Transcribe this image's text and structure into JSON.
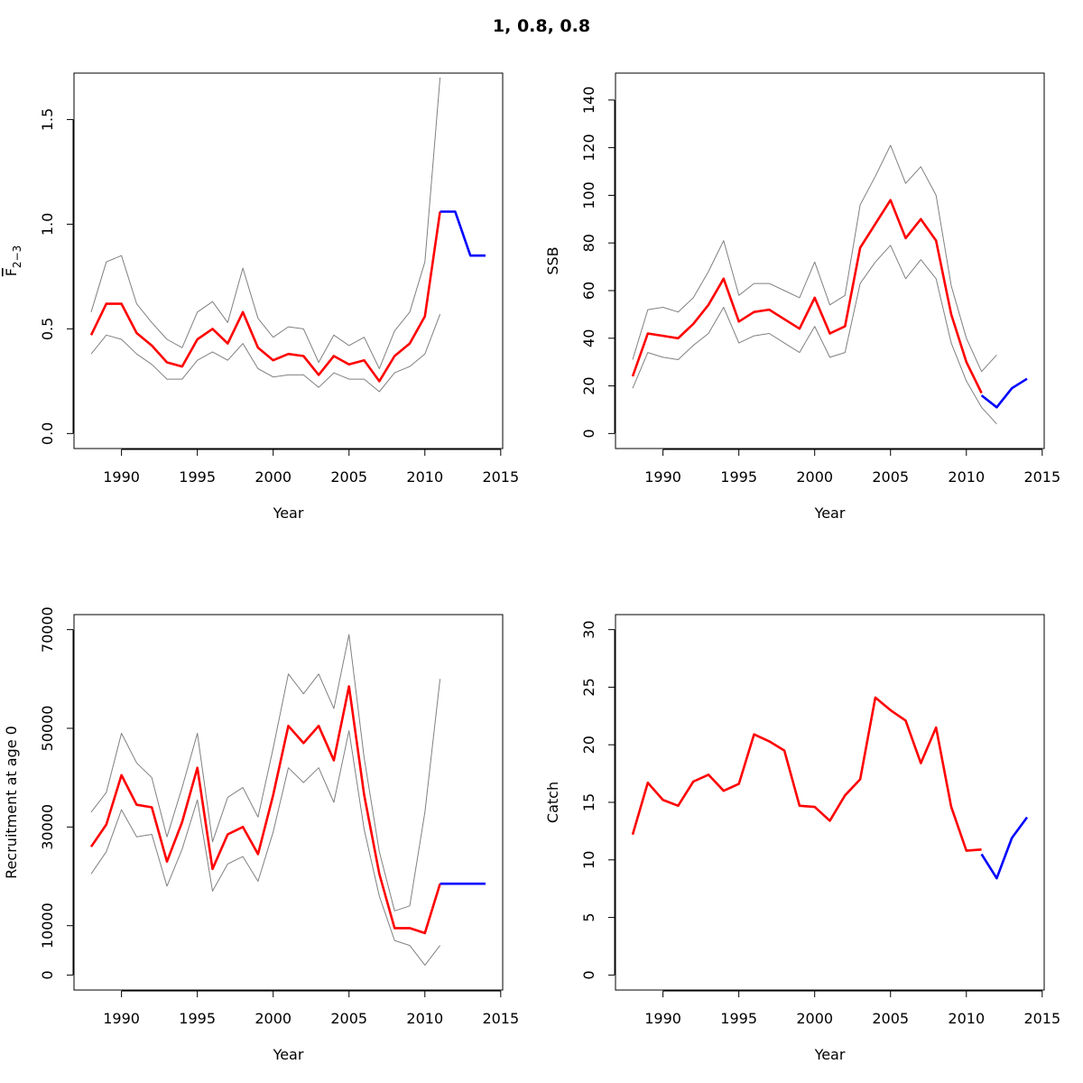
{
  "title": "1, 0.8, 0.8",
  "chart_data": [
    {
      "type": "line",
      "panel": "top-left",
      "xlabel": "Year",
      "ylabel_main": "F",
      "ylabel_sub": "2−3",
      "xlim": [
        1988,
        2014
      ],
      "ylim": [
        0,
        1.65
      ],
      "xticks": [
        1990,
        1995,
        2000,
        2005,
        2010,
        2015
      ],
      "yticks": [
        0.0,
        0.5,
        1.0,
        1.5
      ],
      "ytick_labels": [
        "0.0",
        "0.5",
        "1.0",
        "1.5"
      ],
      "series": [
        {
          "role": "upper",
          "color": "#808080",
          "x": [
            1988,
            1989,
            1990,
            1991,
            1992,
            1993,
            1994,
            1995,
            1996,
            1997,
            1998,
            1999,
            2000,
            2001,
            2002,
            2003,
            2004,
            2005,
            2006,
            2007,
            2008,
            2009,
            2010,
            2011
          ],
          "y": [
            0.58,
            0.82,
            0.85,
            0.62,
            0.53,
            0.45,
            0.41,
            0.58,
            0.63,
            0.53,
            0.79,
            0.55,
            0.46,
            0.51,
            0.5,
            0.34,
            0.47,
            0.42,
            0.46,
            0.31,
            0.49,
            0.58,
            0.82,
            1.7
          ]
        },
        {
          "role": "lower",
          "color": "#808080",
          "x": [
            1988,
            1989,
            1990,
            1991,
            1992,
            1993,
            1994,
            1995,
            1996,
            1997,
            1998,
            1999,
            2000,
            2001,
            2002,
            2003,
            2004,
            2005,
            2006,
            2007,
            2008,
            2009,
            2010,
            2011
          ],
          "y": [
            0.38,
            0.47,
            0.45,
            0.38,
            0.33,
            0.26,
            0.26,
            0.35,
            0.39,
            0.35,
            0.43,
            0.31,
            0.27,
            0.28,
            0.28,
            0.22,
            0.29,
            0.26,
            0.26,
            0.2,
            0.29,
            0.32,
            0.38,
            0.57
          ]
        },
        {
          "role": "estimate",
          "color": "#ff0000",
          "x": [
            1988,
            1989,
            1990,
            1991,
            1992,
            1993,
            1994,
            1995,
            1996,
            1997,
            1998,
            1999,
            2000,
            2001,
            2002,
            2003,
            2004,
            2005,
            2006,
            2007,
            2008,
            2009,
            2010,
            2011
          ],
          "y": [
            0.47,
            0.62,
            0.62,
            0.48,
            0.42,
            0.34,
            0.32,
            0.45,
            0.5,
            0.43,
            0.58,
            0.41,
            0.35,
            0.38,
            0.37,
            0.28,
            0.37,
            0.33,
            0.35,
            0.25,
            0.37,
            0.43,
            0.56,
            1.06
          ]
        },
        {
          "role": "projection",
          "color": "#0000ff",
          "x": [
            2011,
            2012,
            2013,
            2014
          ],
          "y": [
            1.06,
            1.06,
            0.85,
            0.85
          ]
        }
      ]
    },
    {
      "type": "line",
      "panel": "top-right",
      "xlabel": "Year",
      "ylabel": "SSB",
      "xlim": [
        1988,
        2014
      ],
      "ylim": [
        0,
        145
      ],
      "xticks": [
        1990,
        1995,
        2000,
        2005,
        2010,
        2015
      ],
      "yticks": [
        0,
        20,
        40,
        60,
        80,
        100,
        120,
        140
      ],
      "ytick_labels": [
        "0",
        "20",
        "40",
        "60",
        "80",
        "100",
        "120",
        "140"
      ],
      "series": [
        {
          "role": "upper",
          "color": "#808080",
          "x": [
            1988,
            1989,
            1990,
            1991,
            1992,
            1993,
            1994,
            1995,
            1996,
            1997,
            1998,
            1999,
            2000,
            2001,
            2002,
            2003,
            2004,
            2005,
            2006,
            2007,
            2008,
            2009,
            2010,
            2011,
            2012
          ],
          "y": [
            31,
            52,
            53,
            51,
            57,
            68,
            81,
            58,
            63,
            63,
            60,
            57,
            72,
            54,
            58,
            96,
            108,
            121,
            105,
            112,
            100,
            62,
            40,
            26,
            33
          ]
        },
        {
          "role": "lower",
          "color": "#808080",
          "x": [
            1988,
            1989,
            1990,
            1991,
            1992,
            1993,
            1994,
            1995,
            1996,
            1997,
            1998,
            1999,
            2000,
            2001,
            2002,
            2003,
            2004,
            2005,
            2006,
            2007,
            2008,
            2009,
            2010,
            2011,
            2012
          ],
          "y": [
            19,
            34,
            32,
            31,
            37,
            42,
            53,
            38,
            41,
            42,
            38,
            34,
            45,
            32,
            34,
            63,
            72,
            79,
            65,
            73,
            65,
            38,
            22,
            11,
            4
          ]
        },
        {
          "role": "estimate",
          "color": "#ff0000",
          "x": [
            1988,
            1989,
            1990,
            1991,
            1992,
            1993,
            1994,
            1995,
            1996,
            1997,
            1998,
            1999,
            2000,
            2001,
            2002,
            2003,
            2004,
            2005,
            2006,
            2007,
            2008,
            2009,
            2010,
            2011
          ],
          "y": [
            24,
            42,
            41,
            40,
            46,
            54,
            65,
            47,
            51,
            52,
            48,
            44,
            57,
            42,
            45,
            78,
            88,
            98,
            82,
            90,
            81,
            50,
            30,
            17
          ]
        },
        {
          "role": "projection",
          "color": "#0000ff",
          "x": [
            2011,
            2012,
            2013,
            2014
          ],
          "y": [
            16,
            11,
            19,
            23
          ]
        }
      ]
    },
    {
      "type": "line",
      "panel": "bottom-left",
      "xlabel": "Year",
      "ylabel": "Recruitment at age 0",
      "xlim": [
        1988,
        2014
      ],
      "ylim": [
        0,
        70000
      ],
      "xticks": [
        1990,
        1995,
        2000,
        2005,
        2010,
        2015
      ],
      "yticks": [
        0,
        10000,
        30000,
        50000,
        70000
      ],
      "ytick_labels": [
        "0",
        "10000",
        "30000",
        "50000",
        "70000"
      ],
      "series": [
        {
          "role": "upper",
          "color": "#808080",
          "x": [
            1988,
            1989,
            1990,
            1991,
            1992,
            1993,
            1994,
            1995,
            1996,
            1997,
            1998,
            1999,
            2000,
            2001,
            2002,
            2003,
            2004,
            2005,
            2006,
            2007,
            2008,
            2009,
            2010,
            2011
          ],
          "y": [
            33000,
            37000,
            49000,
            43000,
            40000,
            28000,
            38000,
            49000,
            27000,
            36000,
            38000,
            32000,
            46000,
            61000,
            57000,
            61000,
            54000,
            69000,
            44000,
            25000,
            13000,
            14000,
            33000,
            60000
          ]
        },
        {
          "role": "lower",
          "color": "#808080",
          "x": [
            1988,
            1989,
            1990,
            1991,
            1992,
            1993,
            1994,
            1995,
            1996,
            1997,
            1998,
            1999,
            2000,
            2001,
            2002,
            2003,
            2004,
            2005,
            2006,
            2007,
            2008,
            2009,
            2010,
            2011
          ],
          "y": [
            20500,
            25000,
            33500,
            28000,
            28500,
            18000,
            25500,
            35500,
            17000,
            22500,
            24000,
            19000,
            29000,
            42000,
            39000,
            42000,
            35000,
            49500,
            29500,
            16000,
            7000,
            6000,
            2000,
            6000
          ]
        },
        {
          "role": "estimate",
          "color": "#ff0000",
          "x": [
            1988,
            1989,
            1990,
            1991,
            1992,
            1993,
            1994,
            1995,
            1996,
            1997,
            1998,
            1999,
            2000,
            2001,
            2002,
            2003,
            2004,
            2005,
            2006,
            2007,
            2008,
            2009,
            2010,
            2011
          ],
          "y": [
            26000,
            30500,
            40500,
            34500,
            34000,
            23000,
            31000,
            42000,
            21500,
            28500,
            30000,
            24500,
            36500,
            50500,
            47000,
            50500,
            43500,
            58500,
            36500,
            20500,
            9500,
            9500,
            8500,
            18500
          ]
        },
        {
          "role": "projection",
          "color": "#0000ff",
          "x": [
            2011,
            2012,
            2013,
            2014
          ],
          "y": [
            18500,
            18500,
            18500,
            18500
          ]
        }
      ]
    },
    {
      "type": "line",
      "panel": "bottom-right",
      "xlabel": "Year",
      "ylabel": "Catch",
      "xlim": [
        1988,
        2014
      ],
      "ylim": [
        0,
        30
      ],
      "xticks": [
        1990,
        1995,
        2000,
        2005,
        2010,
        2015
      ],
      "yticks": [
        0,
        5,
        10,
        15,
        20,
        25,
        30
      ],
      "ytick_labels": [
        "0",
        "5",
        "10",
        "15",
        "20",
        "25",
        "30"
      ],
      "series": [
        {
          "role": "estimate",
          "color": "#ff0000",
          "x": [
            1988,
            1989,
            1990,
            1991,
            1992,
            1993,
            1994,
            1995,
            1996,
            1997,
            1998,
            1999,
            2000,
            2001,
            2002,
            2003,
            2004,
            2005,
            2006,
            2007,
            2008,
            2009,
            2010,
            2011
          ],
          "y": [
            12.2,
            16.7,
            15.2,
            14.7,
            16.8,
            17.4,
            16.0,
            16.6,
            20.9,
            20.3,
            19.5,
            14.7,
            14.6,
            13.4,
            15.6,
            17.0,
            24.1,
            23.0,
            22.1,
            18.4,
            21.5,
            14.6,
            10.8,
            10.9
          ]
        },
        {
          "role": "projection",
          "color": "#0000ff",
          "x": [
            2011,
            2012,
            2013,
            2014
          ],
          "y": [
            10.5,
            8.4,
            11.9,
            13.7
          ]
        }
      ]
    }
  ]
}
